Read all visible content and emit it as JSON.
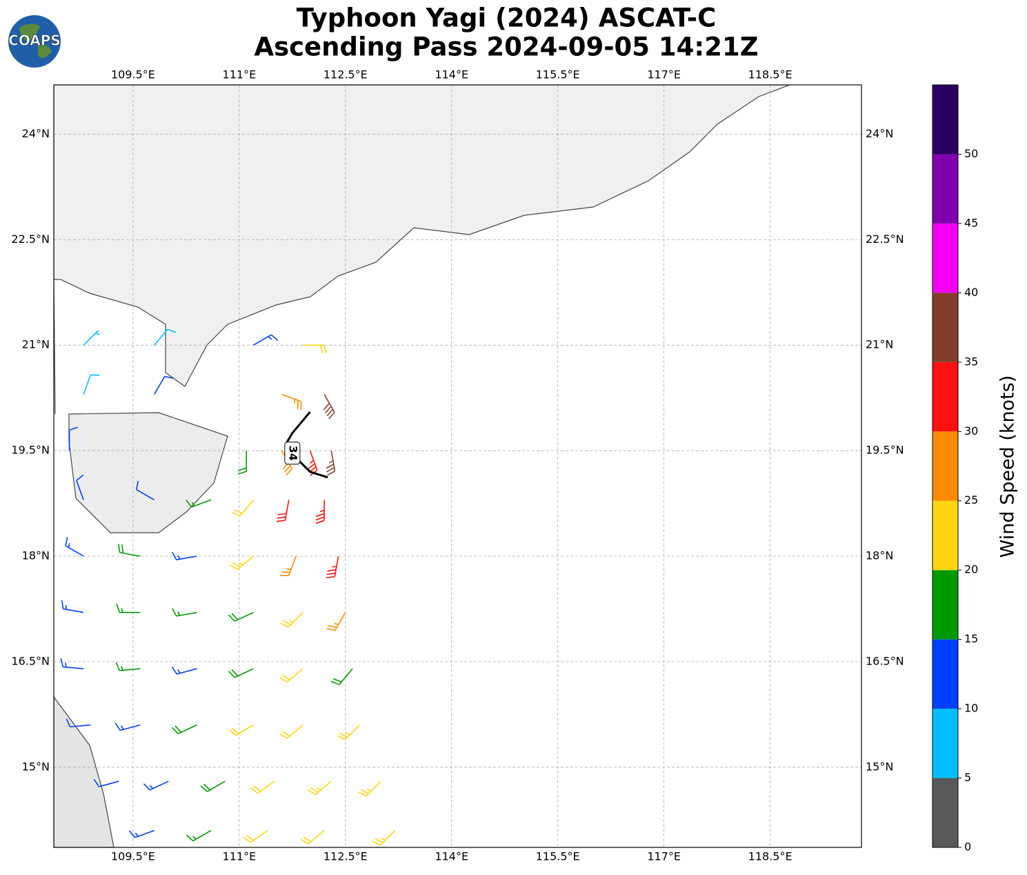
{
  "header": {
    "title": "Typhoon Yagi (2024) ASCAT-C",
    "subtitle": "Ascending Pass 2024-09-05 14:21Z",
    "logo": "COAPS"
  },
  "chart_data": {
    "type": "barbs",
    "xlim": [
      108.38,
      119.79
    ],
    "ylim": [
      13.86,
      24.7
    ],
    "grid": true,
    "xticks": [
      {
        "value": 109.5,
        "label": "109.5°E"
      },
      {
        "value": 111,
        "label": "111°E"
      },
      {
        "value": 112.5,
        "label": "112.5°E"
      },
      {
        "value": 114,
        "label": "114°E"
      },
      {
        "value": 115.5,
        "label": "115.5°E"
      },
      {
        "value": 117,
        "label": "117°E"
      },
      {
        "value": 118.5,
        "label": "118.5°E"
      }
    ],
    "yticks": [
      {
        "value": 15,
        "label": "15°N"
      },
      {
        "value": 16.5,
        "label": "16.5°N"
      },
      {
        "value": 18,
        "label": "18°N"
      },
      {
        "value": 19.5,
        "label": "19.5°N"
      },
      {
        "value": 21,
        "label": "21°N"
      },
      {
        "value": 22.5,
        "label": "22.5°N"
      },
      {
        "value": 24,
        "label": "24°N"
      }
    ],
    "colorbar": {
      "label": "Wind Speed (knots)",
      "lim": [
        0,
        55
      ],
      "ticks": [
        0,
        5,
        10,
        15,
        20,
        25,
        30,
        35,
        40,
        45,
        50
      ],
      "colors": [
        "#595959",
        "#00bfff",
        "#0040ff",
        "#009900",
        "#ffd511",
        "#ff8c00",
        "#ff1010",
        "#823e2a",
        "#f400f4",
        "#8000b0",
        "#2b0060"
      ]
    },
    "contour": {
      "level": 34,
      "lon": [
        112.0,
        111.75,
        111.65,
        null,
        111.85,
        112.0,
        112.25
      ],
      "lat": [
        20.05,
        19.75,
        19.58,
        null,
        19.35,
        19.2,
        19.12
      ]
    },
    "barbs": {
      "lon": [
        108.8,
        109.8,
        111.2,
        111.9,
        108.8,
        109.8,
        111.6,
        112.2,
        108.6,
        111.1,
        111.6,
        112.0,
        112.3,
        108.8,
        109.8,
        110.6,
        111.2,
        111.7,
        112.2,
        108.8,
        109.6,
        110.4,
        111.2,
        111.8,
        112.4,
        108.8,
        109.6,
        110.4,
        111.2,
        111.9,
        112.5,
        108.8,
        109.6,
        110.4,
        111.2,
        111.9,
        112.6,
        108.9,
        109.6,
        110.4,
        111.2,
        111.9,
        112.7,
        109.3,
        110.0,
        110.8,
        111.5,
        112.3,
        113.0,
        109.8,
        110.6,
        111.4,
        112.2,
        113.2
      ],
      "lat": [
        21,
        21,
        21,
        21,
        20.3,
        20.3,
        20.3,
        20.3,
        19.5,
        19.5,
        19.5,
        19.5,
        19.5,
        18.8,
        18.8,
        18.8,
        18.8,
        18.8,
        18.8,
        18,
        18,
        18,
        18,
        18,
        18,
        17.2,
        17.2,
        17.2,
        17.2,
        17.2,
        17.2,
        16.4,
        16.4,
        16.4,
        16.4,
        16.4,
        16.4,
        15.6,
        15.6,
        15.6,
        15.6,
        15.6,
        15.6,
        14.8,
        14.8,
        14.8,
        14.8,
        14.8,
        14.8,
        14.1,
        14.1,
        14.1,
        14.1,
        14.1
      ],
      "speed": [
        7,
        8,
        14,
        22,
        9,
        12,
        27,
        38,
        10,
        18,
        28,
        33,
        37,
        12,
        12,
        17,
        22,
        32,
        34,
        13,
        18,
        14,
        23,
        27,
        33,
        14,
        17,
        16,
        18,
        23,
        27,
        13,
        17,
        14,
        18,
        21,
        18,
        12,
        14,
        18,
        21,
        22,
        23,
        12,
        14,
        18,
        22,
        23,
        24,
        13,
        17,
        21,
        22,
        24
      ],
      "direction": [
        45,
        40,
        60,
        90,
        20,
        30,
        110,
        150,
        0,
        180,
        150,
        160,
        170,
        340,
        300,
        250,
        220,
        190,
        180,
        300,
        280,
        260,
        230,
        200,
        190,
        280,
        270,
        260,
        245,
        225,
        210,
        275,
        265,
        255,
        245,
        230,
        220,
        265,
        255,
        245,
        240,
        230,
        225,
        255,
        245,
        240,
        235,
        230,
        225,
        250,
        240,
        235,
        230,
        225
      ]
    }
  }
}
